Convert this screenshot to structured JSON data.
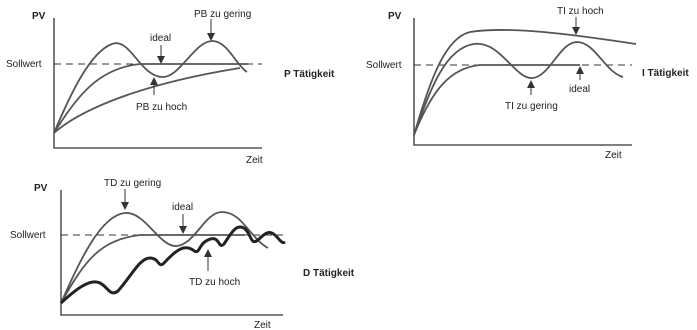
{
  "panels": [
    {
      "id": "p",
      "y_axis": "PV",
      "x_axis": "Zeit",
      "setpoint": "Sollwert",
      "action": "P Tätigkeit",
      "labels": {
        "high_oscillation": "PB zu gering",
        "ideal": "ideal",
        "slow": "PB zu hoch"
      }
    },
    {
      "id": "i",
      "y_axis": "PV",
      "x_axis": "Zeit",
      "setpoint": "Sollwert",
      "action": "I Tätigkeit",
      "labels": {
        "overshoot": "TI zu hoch",
        "oscillation": "TI zu gering",
        "ideal": "ideal"
      }
    },
    {
      "id": "d",
      "y_axis": "PV",
      "x_axis": "Zeit",
      "setpoint": "Sollwert",
      "action": "D Tätigkeit",
      "labels": {
        "oscillation": "TD zu gering",
        "ideal": "ideal",
        "ripple": "TD zu hoch"
      }
    }
  ]
}
